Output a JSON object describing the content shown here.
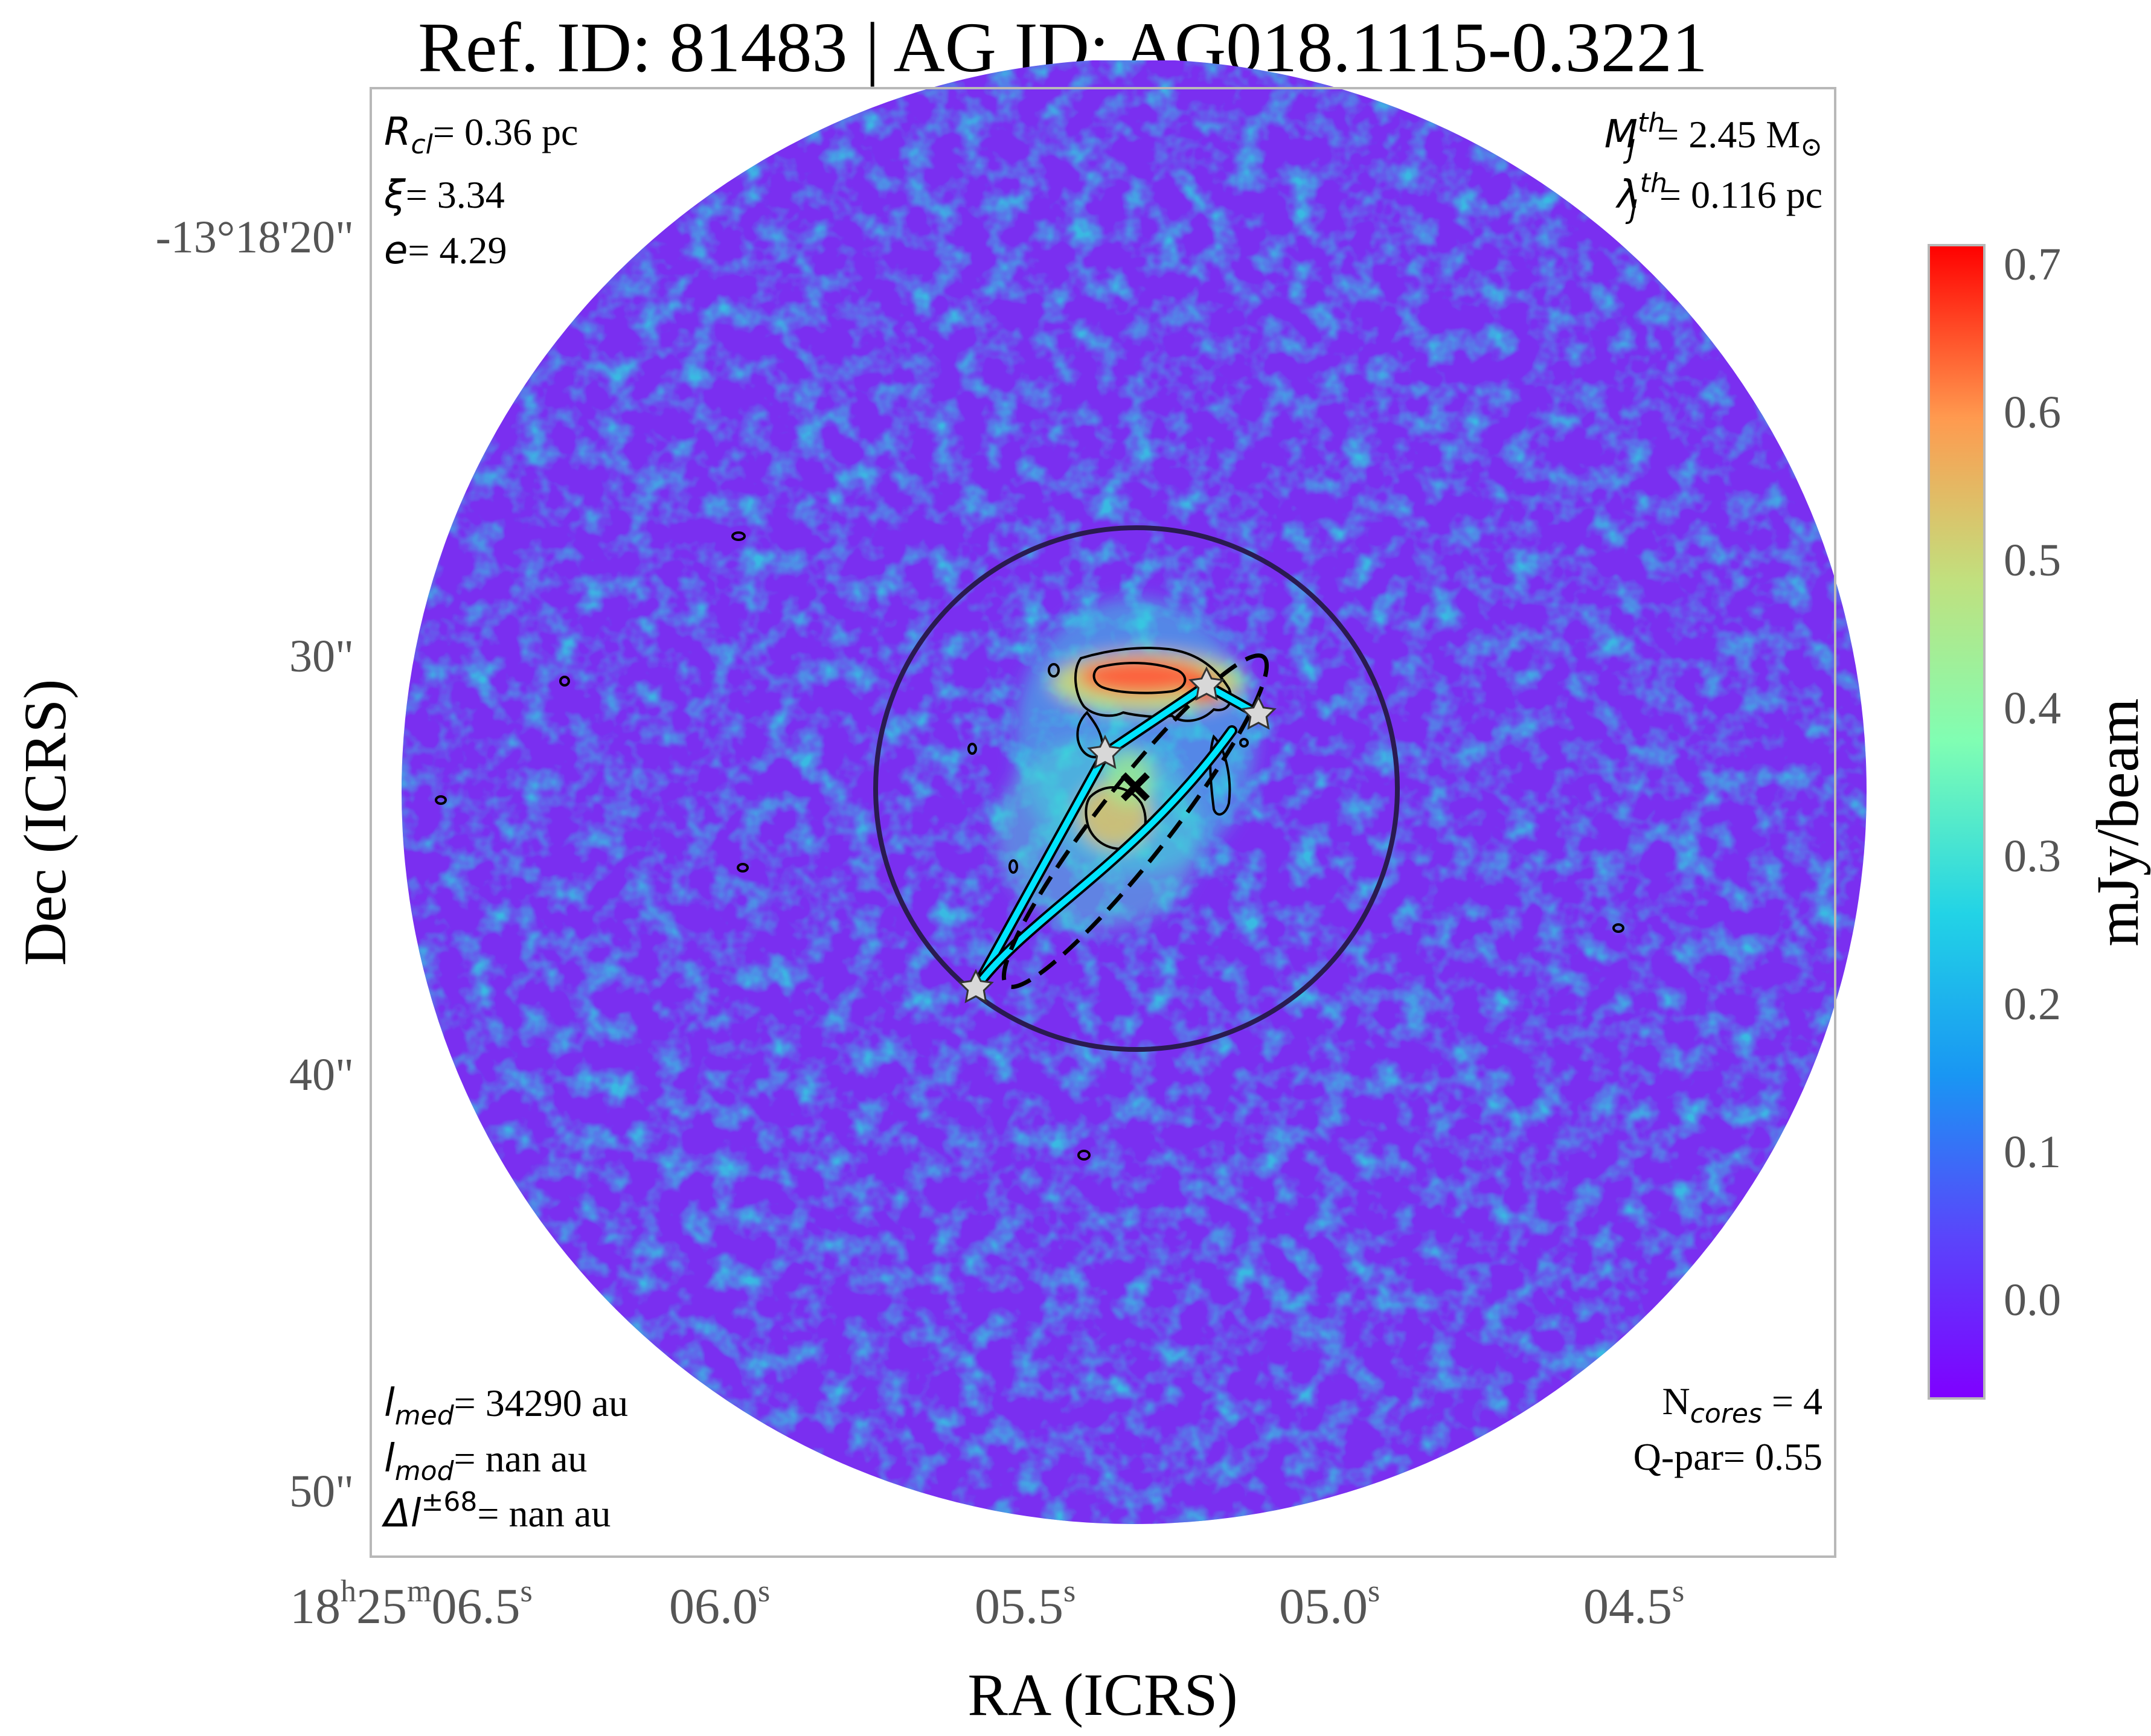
{
  "chart_data": {
    "type": "heatmap",
    "title": "Ref. ID: 81483 | AG ID: AG018.1115-0.3221",
    "xlabel": "RA (ICRS)",
    "ylabel": "Dec (ICRS)",
    "x_ticks": [
      {
        "h": "18",
        "m": "25",
        "s": "06.5"
      },
      {
        "s": "06.0"
      },
      {
        "s": "05.5"
      },
      {
        "s": "05.0"
      },
      {
        "s": "04.5"
      }
    ],
    "y_ticks": [
      "-13°18'20\"",
      "30\"",
      "40\"",
      "50\""
    ],
    "colorbar": {
      "label": "mJy/beam",
      "ticks": [
        "0.7",
        "0.6",
        "0.5",
        "0.4",
        "0.3",
        "0.2",
        "0.1",
        "0.0"
      ],
      "range": [
        -0.07,
        0.71
      ],
      "colormap": "rainbow"
    },
    "annotations": {
      "top_left": [
        {
          "sym": "R",
          "sub": "cl",
          "val": "= 0.36 pc"
        },
        {
          "sym": "ξ",
          "val": "= 3.34"
        },
        {
          "sym": "e",
          "val": "= 4.29"
        }
      ],
      "top_right": [
        {
          "sym": "M",
          "sub": "J",
          "sup": "th",
          "val": "= 2.45 M",
          "unit": "⊙"
        },
        {
          "sym": "λ",
          "sub": "J",
          "sup": "th",
          "val": "= 0.116 pc"
        }
      ],
      "bottom_left": [
        {
          "sym": "l",
          "sub": "med",
          "val": "= 34290 au"
        },
        {
          "sym": "l",
          "sub": "mod",
          "val": "= nan au"
        },
        {
          "sym": "Δl",
          "sup": "±68",
          "val": "= nan au"
        }
      ],
      "bottom_right": [
        {
          "text": "N",
          "sub": "cores",
          "val": " = 4"
        },
        {
          "text": "Q-par= 0.55"
        }
      ]
    },
    "cores_ra_dec": [
      [
        "18h25m05.25s",
        "-13°18'31.1\""
      ],
      [
        "18h25m05.17s",
        "-13°18'31.7\""
      ],
      [
        "18h25m05.42s",
        "-13°18'32.4\""
      ],
      [
        "18h25m05.61s",
        "-13°18'37.7\""
      ]
    ],
    "centroid_ra_dec": [
      "18h25m05.37s",
      "-13°18'33.2\""
    ],
    "colors": {
      "background_field": "#7a2ff0",
      "mst_lines": "#00e5ff",
      "clump_circle": "#2a1a50",
      "stars": "#d8d8d8",
      "contours": "#000000"
    }
  }
}
